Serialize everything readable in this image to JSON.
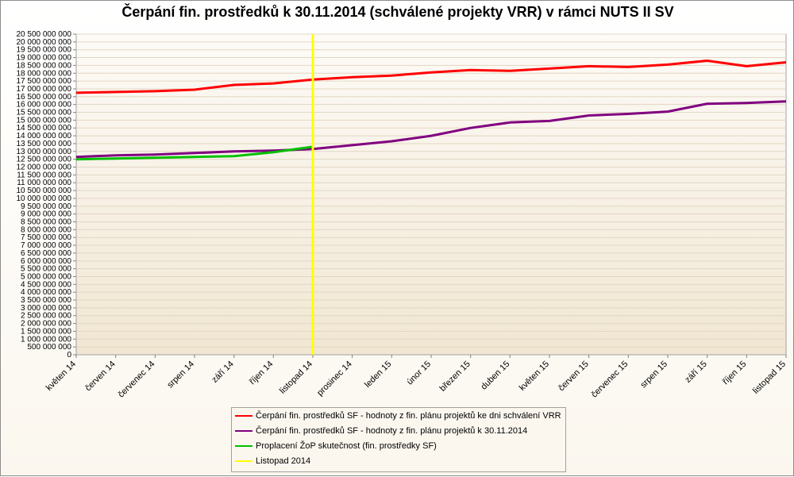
{
  "chart_data": {
    "type": "line",
    "title": "Čerpání fin. prostředků k 30.11.2014 (schválené projekty VRR) v rámci NUTS II SV",
    "categories": [
      "květen 14",
      "červen 14",
      "červenec 14",
      "srpen 14",
      "září 14",
      "říjen 14",
      "listopad 14",
      "prosinec 14",
      "leden 15",
      "únor 15",
      "březen 15",
      "duben 15",
      "květen 15",
      "červen 15",
      "červenec 15",
      "srpen 15",
      "září 15",
      "říjen 15",
      "listopad 15"
    ],
    "ylim": [
      0,
      20500000000
    ],
    "ytick_step": 500000000,
    "y_tick_labels": [
      "0",
      "500 000 000",
      "1 000 000 000",
      "1 500 000 000",
      "2 000 000 000",
      "2 500 000 000",
      "3 000 000 000",
      "3 500 000 000",
      "4 000 000 000",
      "4 500 000 000",
      "5 000 000 000",
      "5 500 000 000",
      "6 000 000 000",
      "6 500 000 000",
      "7 000 000 000",
      "7 500 000 000",
      "8 000 000 000",
      "8 500 000 000",
      "9 000 000 000",
      "9 500 000 000",
      "10 000 000 000",
      "10 500 000 000",
      "11 000 000 000",
      "11 500 000 000",
      "12 000 000 000",
      "12 500 000 000",
      "13 000 000 000",
      "13 500 000 000",
      "14 000 000 000",
      "14 500 000 000",
      "15 000 000 000",
      "15 500 000 000",
      "16 000 000 000",
      "16 500 000 000",
      "17 000 000 000",
      "17 500 000 000",
      "18 000 000 000",
      "18 500 000 000",
      "19 000 000 000",
      "19 500 000 000",
      "20 000 000 000",
      "20 500 000 000"
    ],
    "grid": true,
    "legend_position": "bottom",
    "series": [
      {
        "name": "Čerpání fin. prostředků SF - hodnoty z fin. plánu projektů ke dni schválení VRR",
        "color": "#ff0000",
        "values": [
          16750000000,
          16800000000,
          16850000000,
          16950000000,
          17250000000,
          17350000000,
          17600000000,
          17750000000,
          17850000000,
          18050000000,
          18200000000,
          18150000000,
          18300000000,
          18450000000,
          18400000000,
          18550000000,
          18800000000,
          18450000000,
          18700000000
        ]
      },
      {
        "name": "Čerpání fin. prostředků SF - hodnoty z fin. plánu projektů k 30.11.2014",
        "color": "#800080",
        "values": [
          12650000000,
          12750000000,
          12800000000,
          12900000000,
          13000000000,
          13050000000,
          13150000000,
          13400000000,
          13650000000,
          14000000000,
          14500000000,
          14850000000,
          14950000000,
          15300000000,
          15400000000,
          15550000000,
          16050000000,
          16100000000,
          16200000000
        ]
      },
      {
        "name": "Proplacení ŽoP skutečnost (fin. prostředky SF)",
        "color": "#00c000",
        "values": [
          12500000000,
          12550000000,
          12600000000,
          12650000000,
          12700000000,
          12950000000,
          13300000000,
          null,
          null,
          null,
          null,
          null,
          null,
          null,
          null,
          null,
          null,
          null,
          null
        ]
      },
      {
        "name": "Listopad 2014",
        "color": "#ffff00",
        "marker_category": "listopad 14"
      }
    ]
  }
}
